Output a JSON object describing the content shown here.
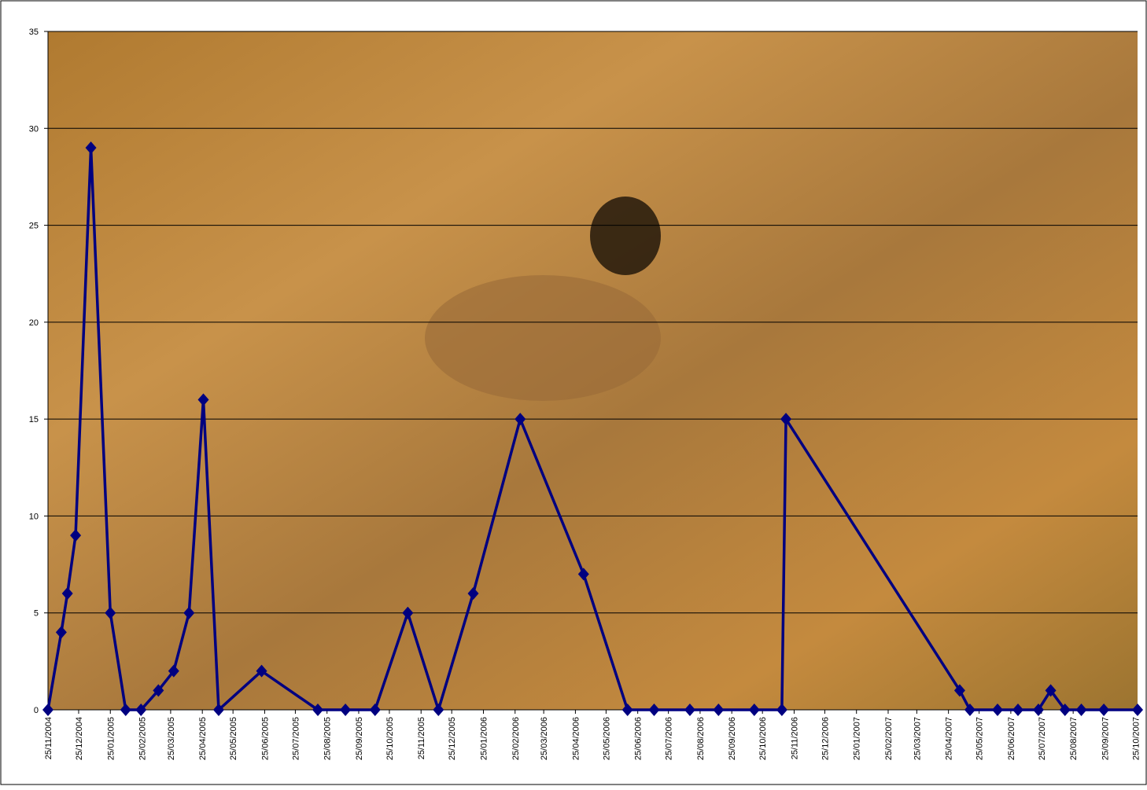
{
  "chart_data": {
    "type": "line",
    "x": [
      "25/11/2004",
      "08/12/2004",
      "14/12/2004",
      "22/12/2004",
      "06/01/2005",
      "25/01/2005",
      "09/02/2005",
      "24/02/2005",
      "13/03/2005",
      "28/03/2005",
      "12/04/2005",
      "26/04/2005",
      "11/05/2005",
      "22/06/2005",
      "16/08/2005",
      "12/09/2005",
      "11/10/2005",
      "12/11/2005",
      "12/12/2005",
      "15/01/2006",
      "02/03/2006",
      "03/05/2006",
      "15/06/2006",
      "11/07/2006",
      "15/08/2006",
      "12/09/2006",
      "17/10/2006",
      "13/11/2006",
      "17/11/2006",
      "06/05/2007",
      "16/05/2007",
      "12/06/2007",
      "02/07/2007",
      "22/07/2007",
      "03/08/2007",
      "17/08/2007",
      "02/09/2007",
      "24/09/2007",
      "27/10/2007"
    ],
    "series": [
      {
        "color": "#000080",
        "values": [
          0,
          4,
          6,
          9,
          29,
          5,
          0,
          0,
          1,
          2,
          5,
          16,
          0,
          2,
          0,
          0,
          0,
          5,
          0,
          6,
          15,
          7,
          0,
          0,
          0,
          0,
          0,
          0,
          15,
          1,
          0,
          0,
          0,
          0,
          1,
          0,
          0,
          0,
          0
        ]
      }
    ],
    "xlim": [
      "25/11/2004",
      "27/10/2007"
    ],
    "xticks": [
      "25/11/2004",
      "25/12/2004",
      "25/01/2005",
      "25/02/2005",
      "25/03/2005",
      "25/04/2005",
      "25/05/2005",
      "25/06/2005",
      "25/07/2005",
      "25/08/2005",
      "25/09/2005",
      "25/10/2005",
      "25/11/2005",
      "25/12/2005",
      "25/01/2006",
      "25/02/2006",
      "25/03/2006",
      "25/04/2006",
      "25/05/2006",
      "25/06/2006",
      "25/07/2006",
      "25/08/2006",
      "25/09/2006",
      "25/10/2006",
      "25/11/2006",
      "25/12/2006",
      "25/01/2007",
      "25/02/2007",
      "25/03/2007",
      "25/04/2007",
      "25/05/2007",
      "25/06/2007",
      "25/07/2007",
      "25/08/2007",
      "25/09/2007",
      "25/10/2007"
    ],
    "ylim": [
      0,
      35
    ],
    "yticks": [
      0,
      5,
      10,
      15,
      20,
      25,
      30,
      35
    ],
    "grid": true
  }
}
